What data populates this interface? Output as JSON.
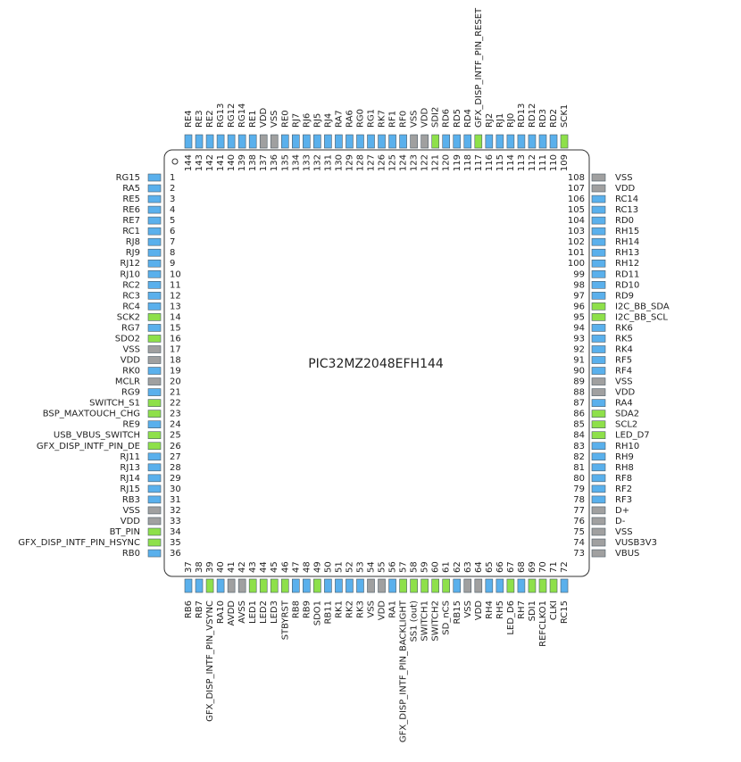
{
  "chip_name": "PIC32MZ2048EFH144",
  "pins": [
    {
      "number": 1,
      "label": "RG15",
      "color": "#5ab0ec"
    },
    {
      "number": 2,
      "label": "RA5",
      "color": "#5ab0ec"
    },
    {
      "number": 3,
      "label": "RE5",
      "color": "#5ab0ec"
    },
    {
      "number": 4,
      "label": "RE6",
      "color": "#5ab0ec"
    },
    {
      "number": 5,
      "label": "RE7",
      "color": "#5ab0ec"
    },
    {
      "number": 6,
      "label": "RC1",
      "color": "#5ab0ec"
    },
    {
      "number": 7,
      "label": "RJ8",
      "color": "#5ab0ec"
    },
    {
      "number": 8,
      "label": "RJ9",
      "color": "#5ab0ec"
    },
    {
      "number": 9,
      "label": "RJ12",
      "color": "#5ab0ec"
    },
    {
      "number": 10,
      "label": "RJ10",
      "color": "#5ab0ec"
    },
    {
      "number": 11,
      "label": "RC2",
      "color": "#5ab0ec"
    },
    {
      "number": 12,
      "label": "RC3",
      "color": "#5ab0ec"
    },
    {
      "number": 13,
      "label": "RC4",
      "color": "#5ab0ec"
    },
    {
      "number": 14,
      "label": "SCK2",
      "color": "#8ee04a"
    },
    {
      "number": 15,
      "label": "RG7",
      "color": "#5ab0ec"
    },
    {
      "number": 16,
      "label": "SDO2",
      "color": "#8ee04a"
    },
    {
      "number": 17,
      "label": "VSS",
      "color": "#a0a0a0"
    },
    {
      "number": 18,
      "label": "VDD",
      "color": "#a0a0a0"
    },
    {
      "number": 19,
      "label": "RK0",
      "color": "#5ab0ec"
    },
    {
      "number": 20,
      "label": "MCLR",
      "color": "#a0a0a0"
    },
    {
      "number": 21,
      "label": "RG9",
      "color": "#5ab0ec"
    },
    {
      "number": 22,
      "label": "SWITCH_S1",
      "color": "#8ee04a"
    },
    {
      "number": 23,
      "label": "BSP_MAXTOUCH_CHG",
      "color": "#8ee04a"
    },
    {
      "number": 24,
      "label": "RE9",
      "color": "#5ab0ec"
    },
    {
      "number": 25,
      "label": "USB_VBUS_SWITCH",
      "color": "#8ee04a"
    },
    {
      "number": 26,
      "label": "GFX_DISP_INTF_PIN_DE",
      "color": "#8ee04a"
    },
    {
      "number": 27,
      "label": "RJ11",
      "color": "#5ab0ec"
    },
    {
      "number": 28,
      "label": "RJ13",
      "color": "#5ab0ec"
    },
    {
      "number": 29,
      "label": "RJ14",
      "color": "#5ab0ec"
    },
    {
      "number": 30,
      "label": "RJ15",
      "color": "#5ab0ec"
    },
    {
      "number": 31,
      "label": "RB3",
      "color": "#5ab0ec"
    },
    {
      "number": 32,
      "label": "VSS",
      "color": "#a0a0a0"
    },
    {
      "number": 33,
      "label": "VDD",
      "color": "#a0a0a0"
    },
    {
      "number": 34,
      "label": "BT_PIN",
      "color": "#8ee04a"
    },
    {
      "number": 35,
      "label": "GFX_DISP_INTF_PIN_HSYNC",
      "color": "#8ee04a"
    },
    {
      "number": 36,
      "label": "RB0",
      "color": "#5ab0ec"
    },
    {
      "number": 37,
      "label": "RB6",
      "color": "#5ab0ec"
    },
    {
      "number": 38,
      "label": "RB7",
      "color": "#5ab0ec"
    },
    {
      "number": 39,
      "label": "GFX_DISP_INTF_PIN_VSYNC",
      "color": "#8ee04a"
    },
    {
      "number": 40,
      "label": "RA10",
      "color": "#5ab0ec"
    },
    {
      "number": 41,
      "label": "AVDD",
      "color": "#a0a0a0"
    },
    {
      "number": 42,
      "label": "AVSS",
      "color": "#a0a0a0"
    },
    {
      "number": 43,
      "label": "LED1",
      "color": "#8ee04a"
    },
    {
      "number": 44,
      "label": "LED2",
      "color": "#8ee04a"
    },
    {
      "number": 45,
      "label": "LED3",
      "color": "#8ee04a"
    },
    {
      "number": 46,
      "label": "STBYRST",
      "color": "#8ee04a"
    },
    {
      "number": 47,
      "label": "RB8",
      "color": "#5ab0ec"
    },
    {
      "number": 48,
      "label": "RB9",
      "color": "#5ab0ec"
    },
    {
      "number": 49,
      "label": "SDO1",
      "color": "#8ee04a"
    },
    {
      "number": 50,
      "label": "RB11",
      "color": "#5ab0ec"
    },
    {
      "number": 51,
      "label": "RK1",
      "color": "#5ab0ec"
    },
    {
      "number": 52,
      "label": "RK2",
      "color": "#5ab0ec"
    },
    {
      "number": 53,
      "label": "RK3",
      "color": "#5ab0ec"
    },
    {
      "number": 54,
      "label": "VSS",
      "color": "#a0a0a0"
    },
    {
      "number": 55,
      "label": "VDD",
      "color": "#a0a0a0"
    },
    {
      "number": 56,
      "label": "RA1",
      "color": "#5ab0ec"
    },
    {
      "number": 57,
      "label": "GFX_DISP_INTF_PIN_BACKLIGHT",
      "color": "#8ee04a"
    },
    {
      "number": 58,
      "label": "SS1 (out)",
      "color": "#8ee04a"
    },
    {
      "number": 59,
      "label": "SWITCH1",
      "color": "#8ee04a"
    },
    {
      "number": 60,
      "label": "SWITCH2",
      "color": "#8ee04a"
    },
    {
      "number": 61,
      "label": "SD_nCS",
      "color": "#8ee04a"
    },
    {
      "number": 62,
      "label": "RB15",
      "color": "#5ab0ec"
    },
    {
      "number": 63,
      "label": "VSS",
      "color": "#a0a0a0"
    },
    {
      "number": 64,
      "label": "VDD",
      "color": "#a0a0a0"
    },
    {
      "number": 65,
      "label": "RH4",
      "color": "#5ab0ec"
    },
    {
      "number": 66,
      "label": "RH5",
      "color": "#5ab0ec"
    },
    {
      "number": 67,
      "label": "LED_D6",
      "color": "#8ee04a"
    },
    {
      "number": 68,
      "label": "RH7",
      "color": "#5ab0ec"
    },
    {
      "number": 69,
      "label": "SDI1",
      "color": "#8ee04a"
    },
    {
      "number": 70,
      "label": "REFCLKO1",
      "color": "#8ee04a"
    },
    {
      "number": 71,
      "label": "CLKI",
      "color": "#8ee04a"
    },
    {
      "number": 72,
      "label": "RC15",
      "color": "#5ab0ec"
    },
    {
      "number": 73,
      "label": "VBUS",
      "color": "#a0a0a0"
    },
    {
      "number": 74,
      "label": "VUSB3V3",
      "color": "#a0a0a0"
    },
    {
      "number": 75,
      "label": "VSS",
      "color": "#a0a0a0"
    },
    {
      "number": 76,
      "label": "D-",
      "color": "#a0a0a0"
    },
    {
      "number": 77,
      "label": "D+",
      "color": "#a0a0a0"
    },
    {
      "number": 78,
      "label": "RF3",
      "color": "#5ab0ec"
    },
    {
      "number": 79,
      "label": "RF2",
      "color": "#5ab0ec"
    },
    {
      "number": 80,
      "label": "RF8",
      "color": "#5ab0ec"
    },
    {
      "number": 81,
      "label": "RH8",
      "color": "#5ab0ec"
    },
    {
      "number": 82,
      "label": "RH9",
      "color": "#5ab0ec"
    },
    {
      "number": 83,
      "label": "RH10",
      "color": "#5ab0ec"
    },
    {
      "number": 84,
      "label": "LED_D7",
      "color": "#8ee04a"
    },
    {
      "number": 85,
      "label": "SCL2",
      "color": "#8ee04a"
    },
    {
      "number": 86,
      "label": "SDA2",
      "color": "#8ee04a"
    },
    {
      "number": 87,
      "label": "RA4",
      "color": "#5ab0ec"
    },
    {
      "number": 88,
      "label": "VDD",
      "color": "#a0a0a0"
    },
    {
      "number": 89,
      "label": "VSS",
      "color": "#a0a0a0"
    },
    {
      "number": 90,
      "label": "RF4",
      "color": "#5ab0ec"
    },
    {
      "number": 91,
      "label": "RF5",
      "color": "#5ab0ec"
    },
    {
      "number": 92,
      "label": "RK4",
      "color": "#5ab0ec"
    },
    {
      "number": 93,
      "label": "RK5",
      "color": "#5ab0ec"
    },
    {
      "number": 94,
      "label": "RK6",
      "color": "#5ab0ec"
    },
    {
      "number": 95,
      "label": "I2C_BB_SCL",
      "color": "#8ee04a"
    },
    {
      "number": 96,
      "label": "I2C_BB_SDA",
      "color": "#8ee04a"
    },
    {
      "number": 97,
      "label": "RD9",
      "color": "#5ab0ec"
    },
    {
      "number": 98,
      "label": "RD10",
      "color": "#5ab0ec"
    },
    {
      "number": 99,
      "label": "RD11",
      "color": "#5ab0ec"
    },
    {
      "number": 100,
      "label": "RH12",
      "color": "#5ab0ec"
    },
    {
      "number": 101,
      "label": "RH13",
      "color": "#5ab0ec"
    },
    {
      "number": 102,
      "label": "RH14",
      "color": "#5ab0ec"
    },
    {
      "number": 103,
      "label": "RH15",
      "color": "#5ab0ec"
    },
    {
      "number": 104,
      "label": "RD0",
      "color": "#5ab0ec"
    },
    {
      "number": 105,
      "label": "RC13",
      "color": "#5ab0ec"
    },
    {
      "number": 106,
      "label": "RC14",
      "color": "#5ab0ec"
    },
    {
      "number": 107,
      "label": "VDD",
      "color": "#a0a0a0"
    },
    {
      "number": 108,
      "label": "VSS",
      "color": "#a0a0a0"
    },
    {
      "number": 109,
      "label": "SCK1",
      "color": "#8ee04a"
    },
    {
      "number": 110,
      "label": "RD2",
      "color": "#5ab0ec"
    },
    {
      "number": 111,
      "label": "RD3",
      "color": "#5ab0ec"
    },
    {
      "number": 112,
      "label": "RD12",
      "color": "#5ab0ec"
    },
    {
      "number": 113,
      "label": "RD13",
      "color": "#5ab0ec"
    },
    {
      "number": 114,
      "label": "RJ0",
      "color": "#5ab0ec"
    },
    {
      "number": 115,
      "label": "RJ1",
      "color": "#5ab0ec"
    },
    {
      "number": 116,
      "label": "RJ2",
      "color": "#5ab0ec"
    },
    {
      "number": 117,
      "label": "GFX_DISP_INTF_PIN_RESET",
      "color": "#8ee04a"
    },
    {
      "number": 118,
      "label": "RD4",
      "color": "#5ab0ec"
    },
    {
      "number": 119,
      "label": "RD5",
      "color": "#5ab0ec"
    },
    {
      "number": 120,
      "label": "RD6",
      "color": "#5ab0ec"
    },
    {
      "number": 121,
      "label": "SDI2",
      "color": "#8ee04a"
    },
    {
      "number": 122,
      "label": "VDD",
      "color": "#a0a0a0"
    },
    {
      "number": 123,
      "label": "VSS",
      "color": "#a0a0a0"
    },
    {
      "number": 124,
      "label": "RF0",
      "color": "#5ab0ec"
    },
    {
      "number": 125,
      "label": "RF1",
      "color": "#5ab0ec"
    },
    {
      "number": 126,
      "label": "RK7",
      "color": "#5ab0ec"
    },
    {
      "number": 127,
      "label": "RG1",
      "color": "#5ab0ec"
    },
    {
      "number": 128,
      "label": "RG0",
      "color": "#5ab0ec"
    },
    {
      "number": 129,
      "label": "RA6",
      "color": "#5ab0ec"
    },
    {
      "number": 130,
      "label": "RA7",
      "color": "#5ab0ec"
    },
    {
      "number": 131,
      "label": "RJ4",
      "color": "#5ab0ec"
    },
    {
      "number": 132,
      "label": "RJ5",
      "color": "#5ab0ec"
    },
    {
      "number": 133,
      "label": "RJ6",
      "color": "#5ab0ec"
    },
    {
      "number": 134,
      "label": "RJ7",
      "color": "#5ab0ec"
    },
    {
      "number": 135,
      "label": "RE0",
      "color": "#5ab0ec"
    },
    {
      "number": 136,
      "label": "VSS",
      "color": "#a0a0a0"
    },
    {
      "number": 137,
      "label": "VDD",
      "color": "#a0a0a0"
    },
    {
      "number": 138,
      "label": "RE1",
      "color": "#5ab0ec"
    },
    {
      "number": 139,
      "label": "RG14",
      "color": "#5ab0ec"
    },
    {
      "number": 140,
      "label": "RG12",
      "color": "#5ab0ec"
    },
    {
      "number": 141,
      "label": "RG13",
      "color": "#5ab0ec"
    },
    {
      "number": 142,
      "label": "RE2",
      "color": "#5ab0ec"
    },
    {
      "number": 143,
      "label": "RE3",
      "color": "#5ab0ec"
    },
    {
      "number": 144,
      "label": "RE4",
      "color": "#5ab0ec"
    }
  ]
}
